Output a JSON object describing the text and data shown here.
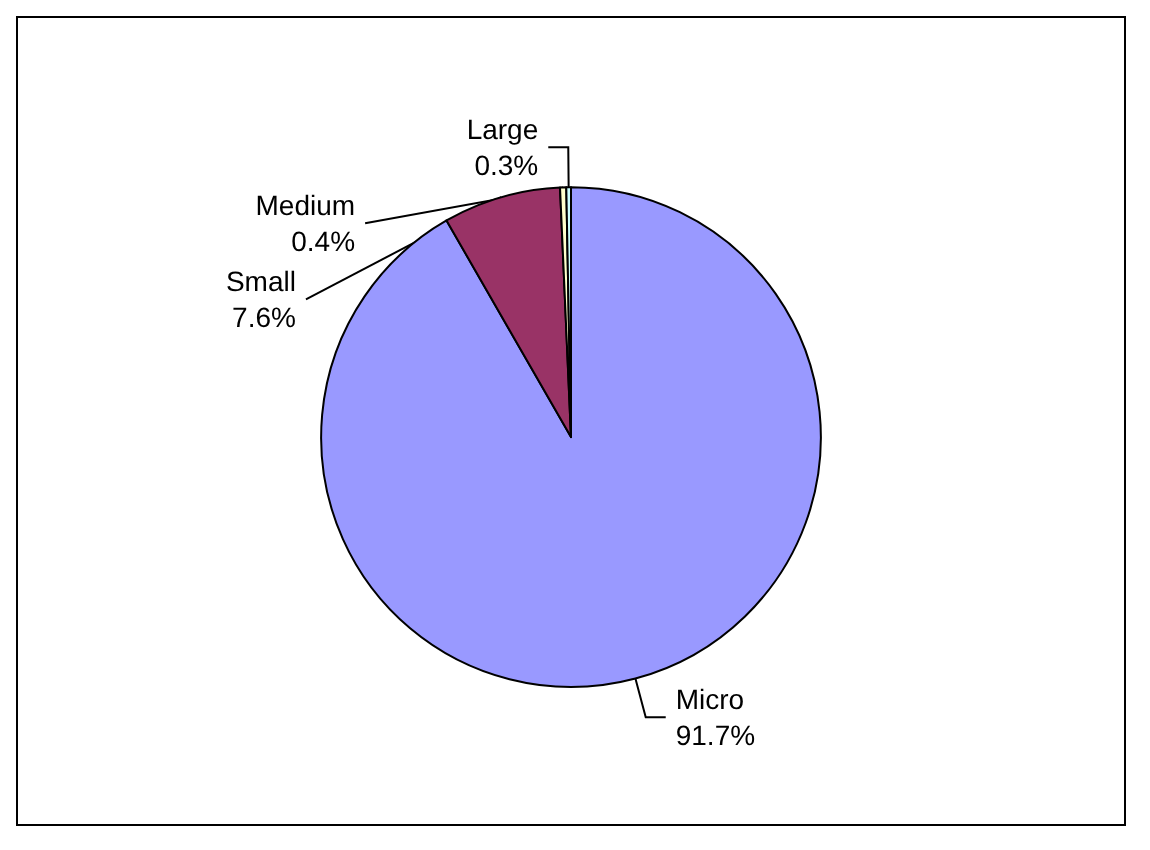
{
  "chart_data": {
    "type": "pie",
    "categories": [
      "Micro",
      "Small",
      "Medium",
      "Large"
    ],
    "values": [
      91.7,
      7.6,
      0.4,
      0.3
    ],
    "value_labels": [
      "91.7%",
      "7.6%",
      "0.4%",
      "0.3%"
    ],
    "colors": [
      "#9999ff",
      "#993366",
      "#ffffcc",
      "#ccffff"
    ],
    "legend": false
  }
}
